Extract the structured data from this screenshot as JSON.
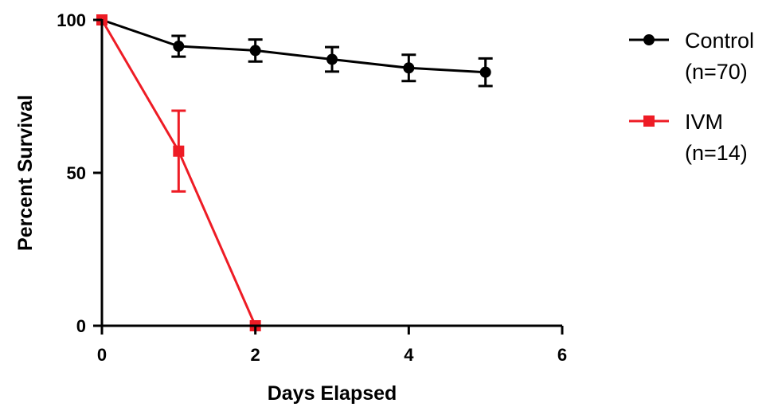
{
  "chart_data": {
    "type": "line",
    "xlabel": "Days Elapsed",
    "ylabel": "Percent Survival",
    "xlim": [
      0,
      6
    ],
    "ylim": [
      0,
      100
    ],
    "x_ticks": [
      0,
      2,
      4,
      6
    ],
    "y_ticks": [
      0,
      50,
      100
    ],
    "grid": false,
    "legend_position": "right",
    "series": [
      {
        "name": "Control",
        "name_line2": "(n=70)",
        "color": "#000000",
        "marker": "circle",
        "x": [
          0,
          1,
          2,
          3,
          4,
          5
        ],
        "y": [
          100,
          91.4,
          90.0,
          87.1,
          84.3,
          82.9
        ],
        "err": [
          0,
          3.4,
          3.6,
          4.0,
          4.3,
          4.5
        ]
      },
      {
        "name": "IVM",
        "name_line2": "(n=14)",
        "color": "#ee1c25",
        "marker": "square",
        "x": [
          0,
          1,
          2
        ],
        "y": [
          100,
          57.1,
          0
        ],
        "err": [
          0,
          13.2,
          0
        ]
      }
    ]
  }
}
